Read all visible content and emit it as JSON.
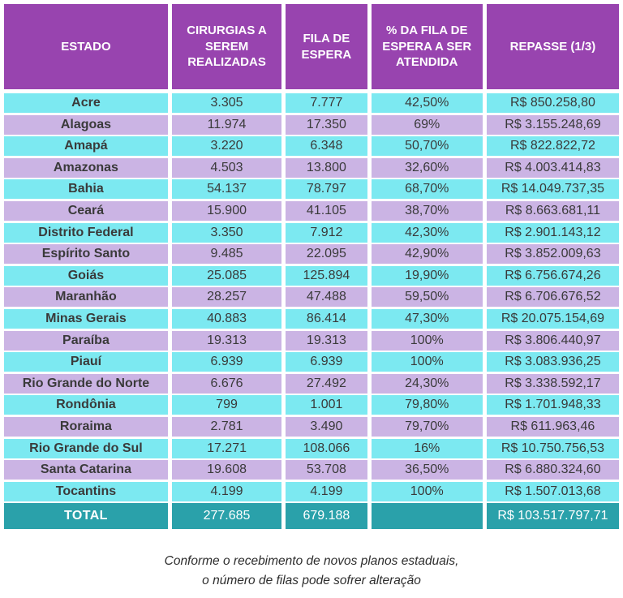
{
  "colors": {
    "header_bg": "#9844af",
    "row_cyan": "#7ce9f1",
    "row_lavender": "#cbb4e4",
    "total_bg": "#2aa1aa",
    "header_text": "#ffffff",
    "body_text": "#3a3a3a",
    "footnote_text": "#2d2d2d"
  },
  "chart_data": {
    "type": "table",
    "columns": [
      "ESTADO",
      "CIRURGIAS A SEREM REALIZADAS",
      "FILA DE ESPERA",
      "% DA FILA DE ESPERA A SER ATENDIDA",
      "REPASSE (1/3)"
    ],
    "rows": [
      [
        "Acre",
        "3.305",
        "7.777",
        "42,50%",
        "R$ 850.258,80"
      ],
      [
        "Alagoas",
        "11.974",
        "17.350",
        "69%",
        "R$ 3.155.248,69"
      ],
      [
        "Amapá",
        "3.220",
        "6.348",
        "50,70%",
        "R$ 822.822,72"
      ],
      [
        "Amazonas",
        "4.503",
        "13.800",
        "32,60%",
        "R$ 4.003.414,83"
      ],
      [
        "Bahia",
        "54.137",
        "78.797",
        "68,70%",
        "R$ 14.049.737,35"
      ],
      [
        "Ceará",
        "15.900",
        "41.105",
        "38,70%",
        "R$ 8.663.681,11"
      ],
      [
        "Distrito Federal",
        "3.350",
        "7.912",
        "42,30%",
        "R$ 2.901.143,12"
      ],
      [
        "Espírito Santo",
        "9.485",
        "22.095",
        "42,90%",
        "R$ 3.852.009,63"
      ],
      [
        "Goiás",
        "25.085",
        "125.894",
        "19,90%",
        "R$ 6.756.674,26"
      ],
      [
        "Maranhão",
        "28.257",
        "47.488",
        "59,50%",
        "R$ 6.706.676,52"
      ],
      [
        "Minas Gerais",
        "40.883",
        "86.414",
        "47,30%",
        "R$ 20.075.154,69"
      ],
      [
        "Paraíba",
        "19.313",
        "19.313",
        "100%",
        "R$ 3.806.440,97"
      ],
      [
        "Piauí",
        "6.939",
        "6.939",
        "100%",
        "R$ 3.083.936,25"
      ],
      [
        "Rio Grande do Norte",
        "6.676",
        "27.492",
        "24,30%",
        "R$ 3.338.592,17"
      ],
      [
        "Rondônia",
        "799",
        "1.001",
        "79,80%",
        "R$ 1.701.948,33"
      ],
      [
        "Roraima",
        "2.781",
        "3.490",
        "79,70%",
        "R$ 611.963,46"
      ],
      [
        "Rio Grande do Sul",
        "17.271",
        "108.066",
        "16%",
        "R$ 10.750.756,53"
      ],
      [
        "Santa Catarina",
        "19.608",
        "53.708",
        "36,50%",
        "R$ 6.880.324,60"
      ],
      [
        "Tocantins",
        "4.199",
        "4.199",
        "100%",
        "R$ 1.507.013,68"
      ]
    ],
    "total_row": [
      "TOTAL",
      "277.685",
      "679.188",
      "",
      "R$ 103.517.797,71"
    ],
    "footnote_lines": [
      "Conforme o recebimento de novos planos estaduais,",
      "o número de filas pode sofrer alteração"
    ]
  }
}
